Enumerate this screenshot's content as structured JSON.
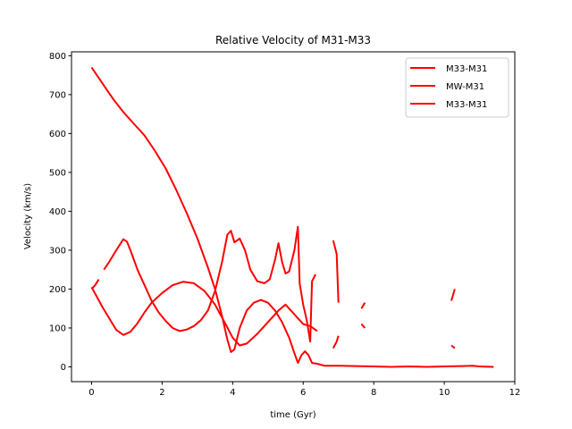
{
  "chart_data": {
    "type": "line",
    "title": "Relative Velocity of M31-M33",
    "xlabel": "time (Gyr)",
    "ylabel": "Velocity (km/s)",
    "xlim": [
      -0.57,
      12.0
    ],
    "ylim": [
      -38,
      810
    ],
    "xticks": [
      0,
      2,
      4,
      6,
      8,
      10,
      12
    ],
    "yticks": [
      0,
      100,
      200,
      300,
      400,
      500,
      600,
      700,
      800
    ],
    "grid": false,
    "legend_position": "top-right",
    "line_color": "#ff0000",
    "series": [
      {
        "name": "M33-M31",
        "segments": [
          [
            [
              0.0,
              205
            ],
            [
              0.15,
              180
            ],
            [
              0.3,
              155
            ],
            [
              0.5,
              125
            ],
            [
              0.7,
              95
            ],
            [
              0.9,
              82
            ],
            [
              1.1,
              90
            ],
            [
              1.3,
              112
            ],
            [
              1.5,
              140
            ],
            [
              1.7,
              165
            ],
            [
              2.0,
              190
            ],
            [
              2.3,
              210
            ],
            [
              2.6,
              219
            ],
            [
              2.9,
              215
            ],
            [
              3.2,
              195
            ],
            [
              3.5,
              160
            ],
            [
              3.8,
              110
            ],
            [
              4.0,
              75
            ],
            [
              4.2,
              55
            ],
            [
              4.4,
              60
            ],
            [
              4.7,
              85
            ],
            [
              5.0,
              115
            ],
            [
              5.3,
              145
            ],
            [
              5.5,
              160
            ],
            [
              5.8,
              130
            ],
            [
              6.0,
              110
            ],
            [
              6.2,
              105
            ],
            [
              6.4,
              92
            ]
          ]
        ]
      },
      {
        "name": "MW-M31",
        "segments": [
          [
            [
              0.0,
              770
            ],
            [
              0.3,
              730
            ],
            [
              0.6,
              690
            ],
            [
              0.9,
              655
            ],
            [
              1.2,
              625
            ],
            [
              1.5,
              595
            ],
            [
              1.8,
              555
            ],
            [
              2.1,
              510
            ],
            [
              2.4,
              455
            ],
            [
              2.7,
              395
            ],
            [
              3.0,
              330
            ],
            [
              3.3,
              255
            ],
            [
              3.5,
              200
            ],
            [
              3.7,
              130
            ],
            [
              3.85,
              70
            ],
            [
              3.95,
              38
            ],
            [
              4.05,
              45
            ],
            [
              4.2,
              100
            ],
            [
              4.4,
              145
            ],
            [
              4.6,
              165
            ],
            [
              4.8,
              172
            ],
            [
              5.0,
              165
            ],
            [
              5.2,
              145
            ],
            [
              5.4,
              115
            ],
            [
              5.6,
              75
            ],
            [
              5.75,
              35
            ],
            [
              5.85,
              10
            ],
            [
              5.95,
              30
            ],
            [
              6.05,
              40
            ],
            [
              6.15,
              30
            ],
            [
              6.25,
              10
            ],
            [
              6.4,
              8
            ],
            [
              6.6,
              3
            ],
            [
              7.0,
              3
            ],
            [
              7.5,
              2
            ],
            [
              8.0,
              1
            ],
            [
              8.5,
              0
            ],
            [
              9.0,
              1
            ],
            [
              9.5,
              0
            ],
            [
              10.0,
              1
            ],
            [
              10.5,
              2
            ],
            [
              10.8,
              3
            ],
            [
              11.0,
              1
            ],
            [
              11.4,
              0
            ]
          ]
        ]
      },
      {
        "name": "M33-M31",
        "segments": [
          [
            [
              0.0,
              200
            ],
            [
              0.1,
              210
            ],
            [
              0.2,
              225
            ]
          ],
          [
            [
              0.35,
              250
            ],
            [
              0.5,
              270
            ],
            [
              0.7,
              300
            ],
            [
              0.9,
              328
            ],
            [
              1.0,
              322
            ],
            [
              1.1,
              300
            ],
            [
              1.3,
              250
            ],
            [
              1.5,
              210
            ],
            [
              1.7,
              170
            ],
            [
              1.9,
              140
            ],
            [
              2.1,
              118
            ],
            [
              2.3,
              100
            ],
            [
              2.5,
              92
            ],
            [
              2.7,
              96
            ],
            [
              2.9,
              105
            ],
            [
              3.1,
              120
            ],
            [
              3.3,
              145
            ],
            [
              3.5,
              195
            ],
            [
              3.7,
              270
            ],
            [
              3.85,
              340
            ],
            [
              3.95,
              350
            ],
            [
              4.05,
              320
            ],
            [
              4.2,
              330
            ],
            [
              4.35,
              300
            ],
            [
              4.5,
              250
            ],
            [
              4.7,
              220
            ],
            [
              4.9,
              215
            ],
            [
              5.05,
              225
            ],
            [
              5.2,
              275
            ],
            [
              5.3,
              318
            ],
            [
              5.4,
              270
            ],
            [
              5.5,
              240
            ],
            [
              5.6,
              245
            ],
            [
              5.75,
              300
            ],
            [
              5.85,
              360
            ],
            [
              5.9,
              215
            ],
            [
              6.0,
              160
            ],
            [
              6.1,
              120
            ],
            [
              6.2,
              65
            ],
            [
              6.25,
              220
            ],
            [
              6.35,
              238
            ]
          ],
          [
            [
              6.85,
              325
            ],
            [
              6.95,
              290
            ],
            [
              7.0,
              165
            ]
          ],
          [
            [
              6.85,
              48
            ],
            [
              6.95,
              65
            ],
            [
              7.0,
              80
            ]
          ],
          [
            [
              7.65,
              150
            ],
            [
              7.75,
              165
            ]
          ],
          [
            [
              7.65,
              110
            ],
            [
              7.75,
              100
            ]
          ],
          [
            [
              10.2,
              170
            ],
            [
              10.3,
              200
            ]
          ],
          [
            [
              10.2,
              55
            ],
            [
              10.3,
              48
            ]
          ]
        ]
      }
    ]
  }
}
